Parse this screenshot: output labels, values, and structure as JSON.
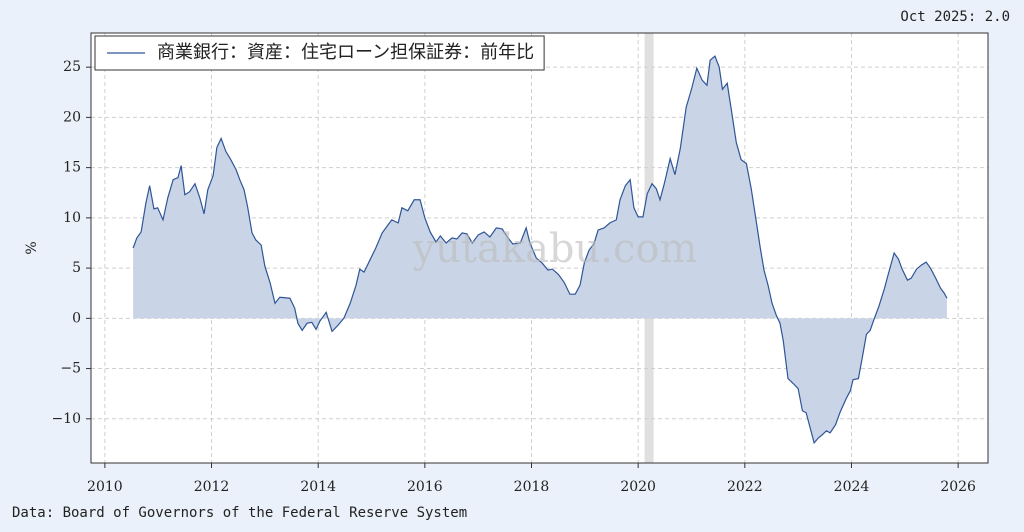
{
  "chart_data": {
    "type": "area",
    "note": "Oct 2025: 2.0",
    "source": "Data: Board of Governors of the Federal Reserve System",
    "watermark": "yutakabu.com",
    "ylabel": "%",
    "xlim": [
      2009.74,
      2026.56
    ],
    "xticks": [
      2010,
      2012,
      2014,
      2016,
      2018,
      2020,
      2022,
      2024,
      2026
    ],
    "ylim": [
      -14.4,
      28.4
    ],
    "yticks": [
      {
        "value": -10,
        "label": "−10"
      },
      {
        "value": -5,
        "label": "−5"
      },
      0,
      5,
      10,
      15,
      20,
      25
    ],
    "grid": true,
    "legend": "upper left",
    "recession_band": [
      2020.12,
      2020.29
    ],
    "series": [
      {
        "name": "商業銀行：資産：住宅ローン担保証券：前年比",
        "color": "#2f5597",
        "fill": "#c9d5e6",
        "x": [
          2010.53,
          2010.6,
          2010.68,
          2010.77,
          2010.84,
          2010.92,
          2010.99,
          2011.09,
          2011.18,
          2011.28,
          2011.37,
          2011.43,
          2011.5,
          2011.59,
          2011.69,
          2011.78,
          2011.86,
          2011.93,
          2012.03,
          2012.1,
          2012.18,
          2012.27,
          2012.36,
          2012.46,
          2012.53,
          2012.61,
          2012.68,
          2012.76,
          2012.83,
          2012.93,
          2013.0,
          2013.1,
          2013.19,
          2013.28,
          2013.47,
          2013.56,
          2013.62,
          2013.7,
          2013.79,
          2013.88,
          2013.96,
          2014.03,
          2014.15,
          2014.26,
          2014.37,
          2014.48,
          2014.6,
          2014.71,
          2014.78,
          2014.86,
          2014.97,
          2015.08,
          2015.2,
          2015.31,
          2015.38,
          2015.5,
          2015.57,
          2015.68,
          2015.8,
          2015.91,
          2016.0,
          2016.1,
          2016.21,
          2016.29,
          2016.4,
          2016.51,
          2016.6,
          2016.7,
          2016.79,
          2016.89,
          2017.0,
          2017.11,
          2017.22,
          2017.34,
          2017.45,
          2017.56,
          2017.65,
          2017.79,
          2017.9,
          2017.97,
          2018.09,
          2018.2,
          2018.31,
          2018.39,
          2018.5,
          2018.61,
          2018.72,
          2018.82,
          2018.91,
          2018.99,
          2019.08,
          2019.17,
          2019.25,
          2019.36,
          2019.47,
          2019.59,
          2019.66,
          2019.76,
          2019.85,
          2019.92,
          2020.0,
          2020.09,
          2020.17,
          2020.26,
          2020.34,
          2020.41,
          2020.49,
          2020.6,
          2020.69,
          2020.79,
          2020.9,
          2021.01,
          2021.1,
          2021.2,
          2021.29,
          2021.35,
          2021.44,
          2021.52,
          2021.58,
          2021.67,
          2021.74,
          2021.84,
          2021.93,
          2022.03,
          2022.12,
          2022.21,
          2022.29,
          2022.36,
          2022.44,
          2022.51,
          2022.59,
          2022.66,
          2022.72,
          2022.81,
          2022.91,
          2023.0,
          2023.08,
          2023.15,
          2023.23,
          2023.3,
          2023.38,
          2023.45,
          2023.53,
          2023.6,
          2023.7,
          2023.79,
          2023.9,
          2023.98,
          2024.03,
          2024.13,
          2024.2,
          2024.28,
          2024.35,
          2024.43,
          2024.52,
          2024.62,
          2024.69,
          2024.8,
          2024.88,
          2024.95,
          2025.05,
          2025.12,
          2025.22,
          2025.31,
          2025.4,
          2025.48,
          2025.57,
          2025.67,
          2025.74,
          2025.79
        ],
        "values": [
          7.0,
          8.0,
          8.6,
          11.5,
          13.2,
          10.9,
          11.0,
          9.8,
          12.0,
          13.8,
          14.0,
          15.2,
          12.3,
          12.6,
          13.4,
          12.0,
          10.4,
          12.8,
          14.2,
          17.0,
          17.9,
          16.6,
          15.8,
          14.8,
          13.8,
          12.8,
          11.0,
          8.5,
          7.8,
          7.3,
          5.2,
          3.5,
          1.5,
          2.1,
          2.0,
          1.0,
          -0.5,
          -1.2,
          -0.5,
          -0.4,
          -1.1,
          -0.3,
          0.6,
          -1.3,
          -0.7,
          0.0,
          1.5,
          3.3,
          4.9,
          4.6,
          5.8,
          7.0,
          8.5,
          9.3,
          9.8,
          9.5,
          11.0,
          10.7,
          11.8,
          11.8,
          10.0,
          8.6,
          7.6,
          8.2,
          7.5,
          8.0,
          7.9,
          8.5,
          8.4,
          7.5,
          8.3,
          8.6,
          8.1,
          9.0,
          8.9,
          8.0,
          7.4,
          7.5,
          9.0,
          7.5,
          6.0,
          5.5,
          4.8,
          4.9,
          4.4,
          3.6,
          2.4,
          2.4,
          3.3,
          5.5,
          6.8,
          7.4,
          8.8,
          9.0,
          9.5,
          9.8,
          11.8,
          13.2,
          13.8,
          11.0,
          10.1,
          10.1,
          12.4,
          13.4,
          12.9,
          11.8,
          13.4,
          15.9,
          14.3,
          16.9,
          21.0,
          23.0,
          24.9,
          23.7,
          23.2,
          25.7,
          26.1,
          25.0,
          22.8,
          23.4,
          21.0,
          17.5,
          15.8,
          15.4,
          12.9,
          9.8,
          7.0,
          4.8,
          3.2,
          1.5,
          0.3,
          -0.5,
          -2.2,
          -6.0,
          -6.5,
          -7.0,
          -9.2,
          -9.4,
          -11.0,
          -12.4,
          -11.9,
          -11.6,
          -11.2,
          -11.4,
          -10.6,
          -9.3,
          -8.0,
          -7.2,
          -6.1,
          -6.0,
          -4.0,
          -1.6,
          -1.2,
          0.0,
          1.3,
          3.0,
          4.4,
          6.5,
          5.9,
          4.9,
          3.8,
          4.0,
          4.9,
          5.3,
          5.6,
          5.0,
          4.1,
          3.0,
          2.5,
          2.0
        ]
      }
    ]
  }
}
